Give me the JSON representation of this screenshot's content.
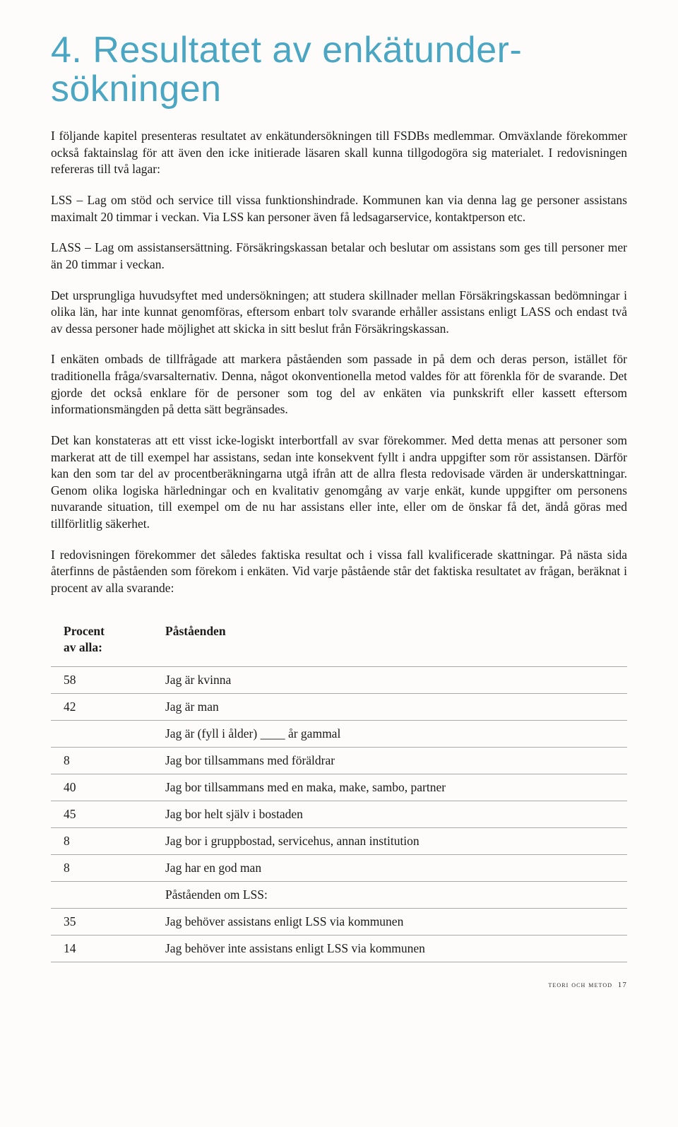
{
  "title": "4. Resultatet av enkätunder­sökningen",
  "paragraphs": [
    "I följande kapitel presenteras resultatet av enkätundersökningen till FSDBs medlemmar. Omväxlande förekommer också faktainslag för att även den icke initierade läsaren skall kunna tillgodogöra sig materialet. I redovisningen refereras till två lagar:",
    "LSS – Lag om stöd och service till vissa funktionshindrade. Kommunen kan via denna lag ge personer assistans maximalt 20 timmar i veckan. Via LSS kan personer även få ledsagarservice, kontaktperson etc.",
    "LASS – Lag om assistansersättning. Försäkringskassan betalar och beslutar om assistans som ges till personer mer än 20 timmar i veckan.",
    "Det ursprungliga huvudsyftet med undersökningen; att studera skillnader mellan Försäkringskassan bedömningar i olika län, har inte kunnat genomföras, eftersom enbart tolv svarande erhåller assistans enligt LASS och endast två av dessa personer hade möjlighet att skicka in sitt beslut från Försäkringskassan.",
    "I enkäten ombads de tillfrågade att markera påståenden som passade in på dem och deras person, istället för traditionella fråga/svarsalternativ. Denna, något okonventionella metod valdes för att förenkla för de svarande. Det gjorde det också enklare för de personer som tog del av enkäten via punkskrift eller kassett eftersom informationsmängden på detta sätt begränsades.",
    "Det kan konstateras att ett visst icke-logiskt interbortfall av svar förekommer. Med detta menas att personer som markerat att de till exempel har assistans, sedan inte konsekvent fyllt i andra uppgifter som rör assistansen. Därför kan den som tar del av procentberäkningarna utgå ifrån att de allra flesta redovisade värden är underskattningar. Genom olika logiska härledningar och en kvalitativ genomgång av varje enkät, kunde uppgifter om personens nuvarande situation, till exempel om de nu har assistans eller inte, eller om de önskar få det, ändå göras med tillförlitlig säkerhet.",
    "I redovisningen förekommer det således faktiska resultat och i vissa fall kvalificerade skattningar. På nästa sida återfinns de påståenden som förekom i enkäten. Vid varje påstående står det faktiska resultatet av frågan, beräknat i procent av alla svarande:"
  ],
  "table": {
    "header": {
      "col1_line1": "Procent",
      "col1_line2": "av alla:",
      "col2": "Påståenden"
    },
    "rows": [
      {
        "percent": "58",
        "statement": "Jag är kvinna"
      },
      {
        "percent": "42",
        "statement": "Jag är man"
      },
      {
        "percent": "",
        "statement": "Jag är (fyll i ålder) ____ år gammal"
      },
      {
        "percent": "8",
        "statement": "Jag bor tillsammans med föräldrar"
      },
      {
        "percent": "40",
        "statement": "Jag bor tillsammans med en maka, make, sambo, partner"
      },
      {
        "percent": "45",
        "statement": "Jag bor helt själv i bostaden"
      },
      {
        "percent": "8",
        "statement": "Jag bor i gruppbostad, servicehus, annan institution"
      },
      {
        "percent": "8",
        "statement": "Jag har en god man"
      },
      {
        "percent": "",
        "statement": "Påståenden om LSS:"
      },
      {
        "percent": "35",
        "statement": "Jag behöver assistans enligt LSS via kommunen"
      },
      {
        "percent": "14",
        "statement": "Jag behöver inte assistans enligt LSS via kommunen"
      }
    ]
  },
  "footer": {
    "section": "teori och metod",
    "page": "17"
  }
}
